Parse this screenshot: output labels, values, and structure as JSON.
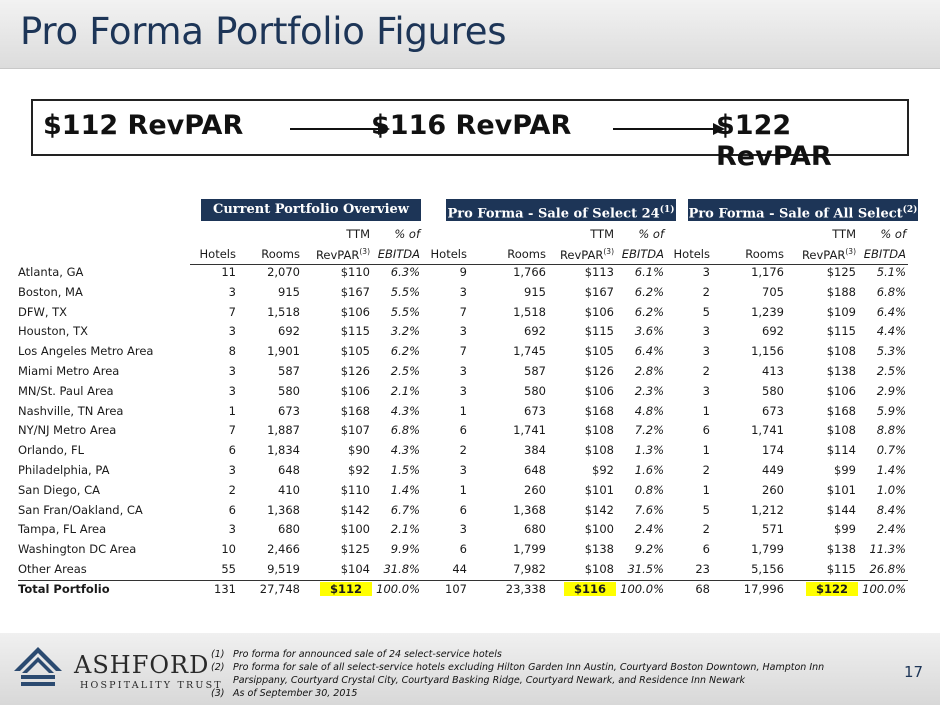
{
  "title": "Pro Forma Portfolio Figures",
  "banner": {
    "rev1": "$112 RevPAR",
    "rev2": "$116 RevPAR",
    "rev3": "$122 RevPAR"
  },
  "groups": [
    {
      "title": "Current Portfolio Overview",
      "sup": ""
    },
    {
      "title": "Pro Forma - Sale of Select 24",
      "sup": "(1)"
    },
    {
      "title": "Pro Forma - Sale of All Select",
      "sup": "(2)"
    }
  ],
  "headers": {
    "ttm": "TTM",
    "pct_of": "% of",
    "hotels": "Hotels",
    "rooms": "Rooms",
    "revpar": "RevPAR",
    "revpar_sup": "(3)",
    "ebitda": "EBITDA"
  },
  "rows": [
    {
      "market": "Atlanta, GA",
      "c": [
        "11",
        "2,070",
        "$110",
        "6.3%"
      ],
      "s": [
        "9",
        "1,766",
        "$113",
        "6.1%"
      ],
      "a": [
        "3",
        "1,176",
        "$125",
        "5.1%"
      ]
    },
    {
      "market": "Boston, MA",
      "c": [
        "3",
        "915",
        "$167",
        "5.5%"
      ],
      "s": [
        "3",
        "915",
        "$167",
        "6.2%"
      ],
      "a": [
        "2",
        "705",
        "$188",
        "6.8%"
      ]
    },
    {
      "market": "DFW, TX",
      "c": [
        "7",
        "1,518",
        "$106",
        "5.5%"
      ],
      "s": [
        "7",
        "1,518",
        "$106",
        "6.2%"
      ],
      "a": [
        "5",
        "1,239",
        "$109",
        "6.4%"
      ]
    },
    {
      "market": "Houston, TX",
      "c": [
        "3",
        "692",
        "$115",
        "3.2%"
      ],
      "s": [
        "3",
        "692",
        "$115",
        "3.6%"
      ],
      "a": [
        "3",
        "692",
        "$115",
        "4.4%"
      ]
    },
    {
      "market": "Los Angeles Metro Area",
      "c": [
        "8",
        "1,901",
        "$105",
        "6.2%"
      ],
      "s": [
        "7",
        "1,745",
        "$105",
        "6.4%"
      ],
      "a": [
        "3",
        "1,156",
        "$108",
        "5.3%"
      ]
    },
    {
      "market": "Miami Metro Area",
      "c": [
        "3",
        "587",
        "$126",
        "2.5%"
      ],
      "s": [
        "3",
        "587",
        "$126",
        "2.8%"
      ],
      "a": [
        "2",
        "413",
        "$138",
        "2.5%"
      ]
    },
    {
      "market": "MN/St. Paul Area",
      "c": [
        "3",
        "580",
        "$106",
        "2.1%"
      ],
      "s": [
        "3",
        "580",
        "$106",
        "2.3%"
      ],
      "a": [
        "3",
        "580",
        "$106",
        "2.9%"
      ]
    },
    {
      "market": "Nashville, TN Area",
      "c": [
        "1",
        "673",
        "$168",
        "4.3%"
      ],
      "s": [
        "1",
        "673",
        "$168",
        "4.8%"
      ],
      "a": [
        "1",
        "673",
        "$168",
        "5.9%"
      ]
    },
    {
      "market": "NY/NJ Metro Area",
      "c": [
        "7",
        "1,887",
        "$107",
        "6.8%"
      ],
      "s": [
        "6",
        "1,741",
        "$108",
        "7.2%"
      ],
      "a": [
        "6",
        "1,741",
        "$108",
        "8.8%"
      ]
    },
    {
      "market": "Orlando, FL",
      "c": [
        "6",
        "1,834",
        "$90",
        "4.3%"
      ],
      "s": [
        "2",
        "384",
        "$108",
        "1.3%"
      ],
      "a": [
        "1",
        "174",
        "$114",
        "0.7%"
      ]
    },
    {
      "market": "Philadelphia, PA",
      "c": [
        "3",
        "648",
        "$92",
        "1.5%"
      ],
      "s": [
        "3",
        "648",
        "$92",
        "1.6%"
      ],
      "a": [
        "2",
        "449",
        "$99",
        "1.4%"
      ]
    },
    {
      "market": "San Diego, CA",
      "c": [
        "2",
        "410",
        "$110",
        "1.4%"
      ],
      "s": [
        "1",
        "260",
        "$101",
        "0.8%"
      ],
      "a": [
        "1",
        "260",
        "$101",
        "1.0%"
      ]
    },
    {
      "market": "San Fran/Oakland, CA",
      "c": [
        "6",
        "1,368",
        "$142",
        "6.7%"
      ],
      "s": [
        "6",
        "1,368",
        "$142",
        "7.6%"
      ],
      "a": [
        "5",
        "1,212",
        "$144",
        "8.4%"
      ]
    },
    {
      "market": "Tampa, FL Area",
      "c": [
        "3",
        "680",
        "$100",
        "2.1%"
      ],
      "s": [
        "3",
        "680",
        "$100",
        "2.4%"
      ],
      "a": [
        "2",
        "571",
        "$99",
        "2.4%"
      ]
    },
    {
      "market": "Washington DC Area",
      "c": [
        "10",
        "2,466",
        "$125",
        "9.9%"
      ],
      "s": [
        "6",
        "1,799",
        "$138",
        "9.2%"
      ],
      "a": [
        "6",
        "1,799",
        "$138",
        "11.3%"
      ]
    },
    {
      "market": "Other Areas",
      "c": [
        "55",
        "9,519",
        "$104",
        "31.8%"
      ],
      "s": [
        "44",
        "7,982",
        "$108",
        "31.5%"
      ],
      "a": [
        "23",
        "5,156",
        "$115",
        "26.8%"
      ]
    }
  ],
  "total": {
    "market": "Total Portfolio",
    "c": [
      "131",
      "27,748",
      "$112",
      "100.0%"
    ],
    "s": [
      "107",
      "23,338",
      "$116",
      "100.0%"
    ],
    "a": [
      "68",
      "17,996",
      "$122",
      "100.0%"
    ]
  },
  "logo": {
    "name": "ASHFORD",
    "sub": "HOSPITALITY TRUST"
  },
  "footnotes": [
    {
      "num": "(1)",
      "text": "Pro forma for announced sale of 24 select-service hotels"
    },
    {
      "num": "(2)",
      "text": "Pro forma for sale of all select-service hotels excluding Hilton Garden Inn Austin, Courtyard Boston Downtown, Hampton Inn"
    },
    {
      "num": "",
      "text": "Parsippany, Courtyard Crystal City, Courtyard Basking Ridge, Courtyard Newark, and Residence Inn Newark"
    },
    {
      "num": "(3)",
      "text": "As of September 30, 2015"
    }
  ],
  "page_number": "17"
}
